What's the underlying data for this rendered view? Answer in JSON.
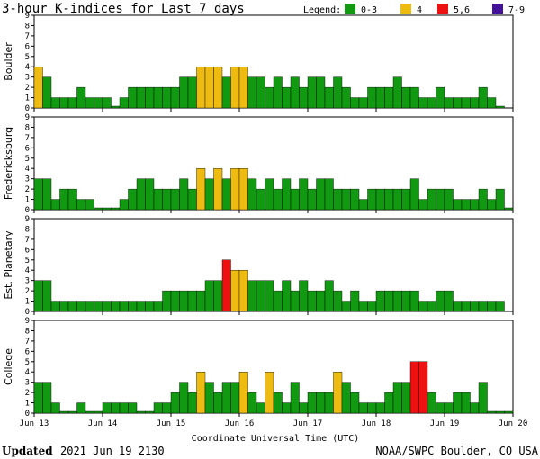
{
  "title": "3-hour K-indices for Last 7 days",
  "legend": {
    "label": "Legend:",
    "items": [
      {
        "label": "0-3",
        "color": "#119911"
      },
      {
        "label": "4",
        "color": "#eebb11"
      },
      {
        "label": "5,6",
        "color": "#ee1111"
      },
      {
        "label": "7-9",
        "color": "#441199"
      }
    ]
  },
  "footer": {
    "updated_label": "Updated",
    "updated_value": "2021 Jun 19 2130",
    "source": "NOAA/SWPC Boulder, CO USA"
  },
  "chart_data": {
    "type": "bar",
    "xlabel": "Coordinate Universal Time (UTC)",
    "ylim": [
      0,
      9
    ],
    "yticks": [
      "0",
      "1",
      "2",
      "3",
      "4",
      "5",
      "6",
      "7",
      "8",
      "9"
    ],
    "x_tick_labels": [
      "Jun 13",
      "Jun 14",
      "Jun 15",
      "Jun 16",
      "Jun 17",
      "Jun 18",
      "Jun 19",
      "Jun 20"
    ],
    "intervals_per_day": 8,
    "days": 7,
    "series": [
      {
        "name": "Boulder",
        "values": [
          4,
          3,
          1,
          1,
          1,
          2,
          1,
          1,
          1,
          0,
          1,
          2,
          2,
          2,
          2,
          2,
          2,
          3,
          3,
          4,
          4,
          4,
          3,
          4,
          4,
          3,
          3,
          2,
          3,
          2,
          3,
          2,
          3,
          3,
          2,
          3,
          2,
          1,
          1,
          2,
          2,
          2,
          3,
          2,
          2,
          1,
          1,
          2,
          1,
          1,
          1,
          1,
          2,
          1,
          0
        ]
      },
      {
        "name": "Fredericksburg",
        "values": [
          3,
          3,
          1,
          2,
          2,
          1,
          1,
          0,
          0,
          0,
          1,
          2,
          3,
          3,
          2,
          2,
          2,
          3,
          2,
          4,
          3,
          4,
          3,
          4,
          4,
          3,
          2,
          3,
          2,
          3,
          2,
          3,
          2,
          3,
          3,
          2,
          2,
          2,
          1,
          2,
          2,
          2,
          2,
          2,
          3,
          1,
          2,
          2,
          2,
          1,
          1,
          1,
          2,
          1,
          2,
          0
        ]
      },
      {
        "name": "Est. Planetary",
        "values": [
          3,
          3,
          1,
          1,
          1,
          1,
          1,
          1,
          1,
          1,
          1,
          1,
          1,
          1,
          1,
          2,
          2,
          2,
          2,
          2,
          3,
          3,
          5,
          4,
          4,
          3,
          3,
          3,
          2,
          3,
          2,
          3,
          2,
          2,
          3,
          2,
          1,
          2,
          1,
          1,
          2,
          2,
          2,
          2,
          2,
          1,
          1,
          2,
          2,
          1,
          1,
          1,
          1,
          1,
          1
        ]
      },
      {
        "name": "College",
        "values": [
          3,
          3,
          1,
          0,
          0,
          1,
          0,
          0,
          1,
          1,
          1,
          1,
          0,
          0,
          1,
          1,
          2,
          3,
          2,
          4,
          3,
          2,
          3,
          3,
          4,
          2,
          1,
          4,
          2,
          1,
          3,
          1,
          2,
          2,
          2,
          4,
          3,
          2,
          1,
          1,
          1,
          2,
          3,
          3,
          5,
          5,
          2,
          1,
          1,
          2,
          2,
          1,
          3,
          0,
          0,
          0
        ]
      }
    ]
  }
}
